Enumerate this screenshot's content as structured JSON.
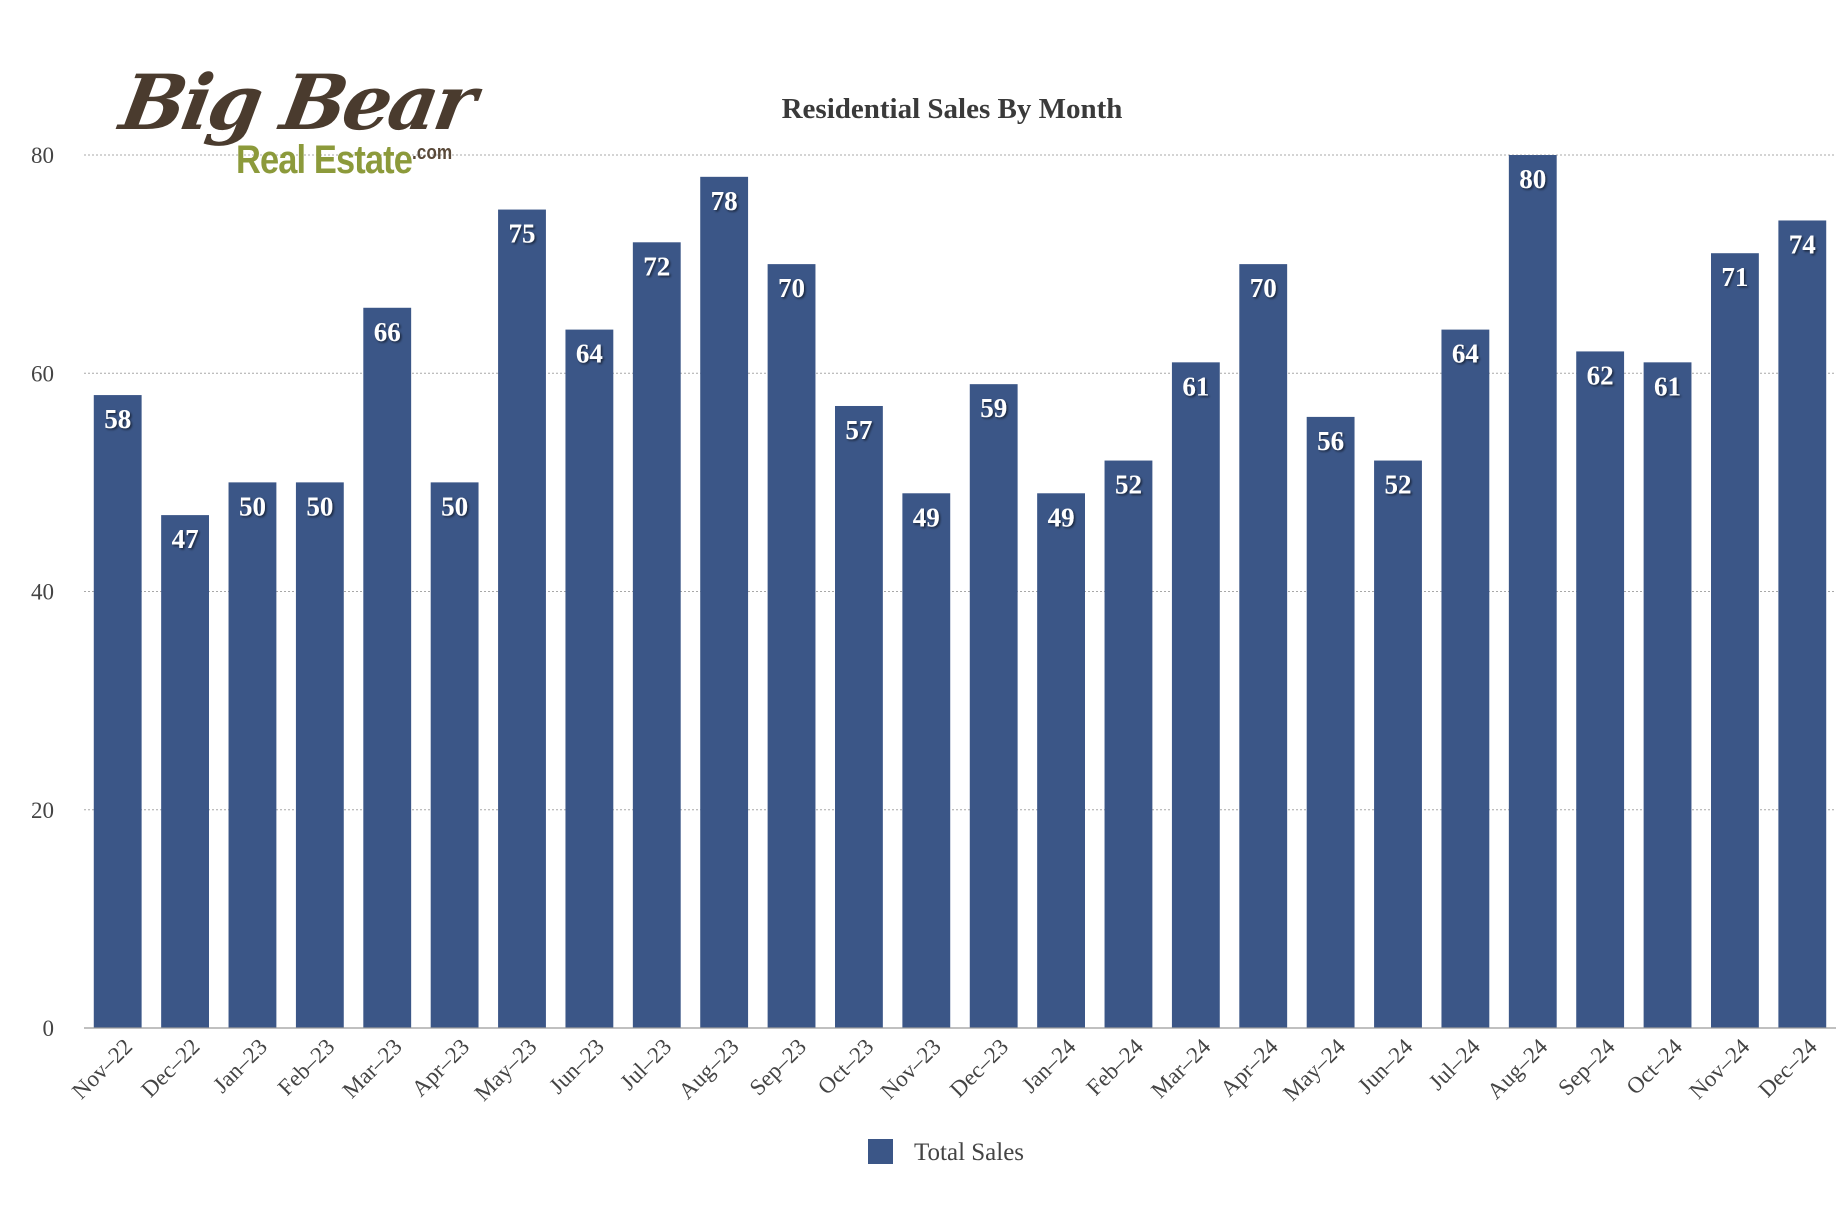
{
  "logo": {
    "big_text": "Big Bear",
    "sub_text": "Real Estate",
    "suffix": ".com"
  },
  "colors": {
    "bar": "#3b5687",
    "grid": "#a8a8a8",
    "axis_text": "#444444",
    "title_text": "#3a3a3a"
  },
  "chart_data": {
    "type": "bar",
    "title": "Residential Sales By Month",
    "xlabel": "",
    "ylabel": "",
    "ylim": [
      0,
      80
    ],
    "yticks": [
      0,
      20,
      40,
      60,
      80
    ],
    "grid": true,
    "legend_position": "bottom-center",
    "categories": [
      "Nov–22",
      "Dec–22",
      "Jan–23",
      "Feb–23",
      "Mar–23",
      "Apr–23",
      "May–23",
      "Jun–23",
      "Jul–23",
      "Aug–23",
      "Sep–23",
      "Oct–23",
      "Nov–23",
      "Dec–23",
      "Jan–24",
      "Feb–24",
      "Mar–24",
      "Apr–24",
      "May–24",
      "Jun–24",
      "Jul–24",
      "Aug–24",
      "Sep–24",
      "Oct–24",
      "Nov–24",
      "Dec–24"
    ],
    "series": [
      {
        "name": "Total Sales",
        "color": "#3b5687",
        "values": [
          58,
          47,
          50,
          50,
          66,
          50,
          75,
          64,
          72,
          78,
          70,
          57,
          49,
          59,
          49,
          52,
          61,
          70,
          56,
          52,
          64,
          80,
          62,
          61,
          71,
          74
        ]
      }
    ]
  }
}
